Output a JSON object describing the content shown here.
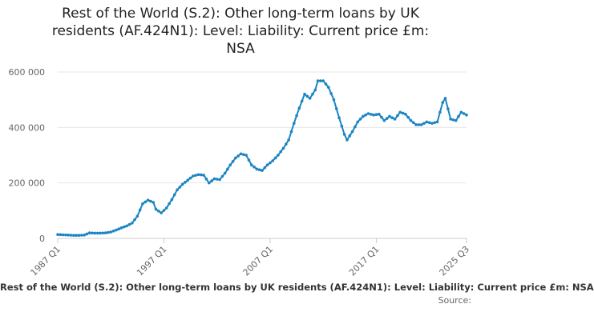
{
  "chart_data": {
    "type": "line",
    "title_lines": [
      "Rest of the World (S.2): Other long-term loans by UK",
      "residents (AF.424N1): Level: Liability: Current price £m:",
      "NSA"
    ],
    "xlabel": "",
    "ylabel": "",
    "ylim": [
      0,
      600000
    ],
    "y_ticks": [
      0,
      200000,
      400000,
      600000
    ],
    "y_tick_labels": [
      "0",
      "200 000",
      "400 000",
      "600 000"
    ],
    "x_ticks": [
      "1987 Q1",
      "1997 Q1",
      "2007 Q1",
      "2017 Q1",
      "2025 Q3"
    ],
    "grid": true,
    "line_color": "#1a85c2",
    "series": [
      {
        "name": "Rest of the World (S.2): Other long-term loans by UK residents (AF.424N1): Level: Liability: Current price £m: NSA",
        "points": [
          [
            "1987 Q1",
            14000
          ],
          [
            "1987 Q3",
            13000
          ],
          [
            "1988 Q1",
            12000
          ],
          [
            "1988 Q3",
            11000
          ],
          [
            "1989 Q1",
            11000
          ],
          [
            "1989 Q3",
            12000
          ],
          [
            "1990 Q1",
            20000
          ],
          [
            "1990 Q3",
            19000
          ],
          [
            "1991 Q1",
            19000
          ],
          [
            "1991 Q3",
            20000
          ],
          [
            "1992 Q1",
            23000
          ],
          [
            "1992 Q3",
            30000
          ],
          [
            "1993 Q1",
            38000
          ],
          [
            "1993 Q3",
            45000
          ],
          [
            "1994 Q1",
            55000
          ],
          [
            "1994 Q3",
            80000
          ],
          [
            "1995 Q1",
            125000
          ],
          [
            "1995 Q3",
            138000
          ],
          [
            "1996 Q1",
            130000
          ],
          [
            "1996 Q2",
            105000
          ],
          [
            "1996 Q4",
            92000
          ],
          [
            "1997 Q2",
            110000
          ],
          [
            "1997 Q4",
            140000
          ],
          [
            "1998 Q2",
            175000
          ],
          [
            "1998 Q4",
            195000
          ],
          [
            "1999 Q2",
            210000
          ],
          [
            "1999 Q4",
            225000
          ],
          [
            "2000 Q2",
            230000
          ],
          [
            "2000 Q4",
            228000
          ],
          [
            "2001 Q2",
            200000
          ],
          [
            "2001 Q4",
            215000
          ],
          [
            "2002 Q2",
            212000
          ],
          [
            "2002 Q4",
            235000
          ],
          [
            "2003 Q2",
            265000
          ],
          [
            "2003 Q4",
            290000
          ],
          [
            "2004 Q2",
            305000
          ],
          [
            "2004 Q4",
            300000
          ],
          [
            "2005 Q2",
            265000
          ],
          [
            "2005 Q4",
            250000
          ],
          [
            "2006 Q2",
            245000
          ],
          [
            "2006 Q4",
            265000
          ],
          [
            "2007 Q2",
            280000
          ],
          [
            "2007 Q4",
            300000
          ],
          [
            "2008 Q2",
            325000
          ],
          [
            "2008 Q4",
            355000
          ],
          [
            "2009 Q2",
            415000
          ],
          [
            "2009 Q4",
            470000
          ],
          [
            "2010 Q2",
            520000
          ],
          [
            "2010 Q4",
            505000
          ],
          [
            "2011 Q2",
            535000
          ],
          [
            "2011 Q3",
            568000
          ],
          [
            "2012 Q1",
            568000
          ],
          [
            "2012 Q3",
            545000
          ],
          [
            "2013 Q1",
            500000
          ],
          [
            "2013 Q3",
            435000
          ],
          [
            "2014 Q1",
            375000
          ],
          [
            "2014 Q2",
            355000
          ],
          [
            "2014 Q4",
            385000
          ],
          [
            "2015 Q2",
            420000
          ],
          [
            "2015 Q4",
            440000
          ],
          [
            "2016 Q2",
            450000
          ],
          [
            "2016 Q4",
            445000
          ],
          [
            "2017 Q2",
            448000
          ],
          [
            "2017 Q4",
            425000
          ],
          [
            "2018 Q2",
            440000
          ],
          [
            "2018 Q4",
            430000
          ],
          [
            "2019 Q2",
            455000
          ],
          [
            "2019 Q4",
            448000
          ],
          [
            "2020 Q2",
            425000
          ],
          [
            "2020 Q4",
            410000
          ],
          [
            "2021 Q2",
            410000
          ],
          [
            "2021 Q4",
            420000
          ],
          [
            "2022 Q2",
            415000
          ],
          [
            "2022 Q4",
            420000
          ],
          [
            "2023 Q2",
            490000
          ],
          [
            "2023 Q3",
            505000
          ],
          [
            "2024 Q1",
            430000
          ],
          [
            "2024 Q3",
            425000
          ],
          [
            "2025 Q1",
            455000
          ],
          [
            "2025 Q3",
            445000
          ]
        ]
      }
    ]
  },
  "legend_text": "Rest of the World (S.2): Other long-term loans by UK residents (AF.424N1): Level: Liability: Current price £m: NSA",
  "source_label": "Source:"
}
